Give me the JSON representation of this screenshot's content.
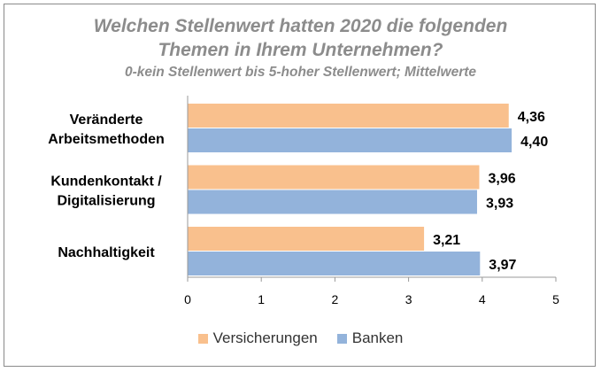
{
  "chart_data": {
    "type": "bar",
    "orientation": "horizontal",
    "title": "Welchen Stellenwert hatten 2020 die folgenden",
    "title_line2": "Themen in Ihrem Unternehmen?",
    "subtitle": "0-kein Stellenwert bis 5-hoher Stellenwert; Mittelwerte",
    "categories": [
      [
        "Veränderte",
        "Arbeitsmethoden"
      ],
      [
        "Kundenkontakt /",
        "Digitalisierung"
      ],
      [
        "Nachhaltigkeit"
      ]
    ],
    "series": [
      {
        "name": "Versicherungen",
        "values": [
          4.36,
          3.96,
          3.21
        ],
        "labels": [
          "4,36",
          "3,96",
          "3,21"
        ],
        "color": "#f9c08d"
      },
      {
        "name": "Banken",
        "values": [
          4.4,
          3.93,
          3.97
        ],
        "labels": [
          "4,40",
          "3,93",
          "3,97"
        ],
        "color": "#93b3db"
      }
    ],
    "xlim": [
      0,
      5
    ],
    "xticks": [
      "0",
      "1",
      "2",
      "3",
      "4",
      "5"
    ],
    "legend_position": "bottom",
    "grid": false
  }
}
